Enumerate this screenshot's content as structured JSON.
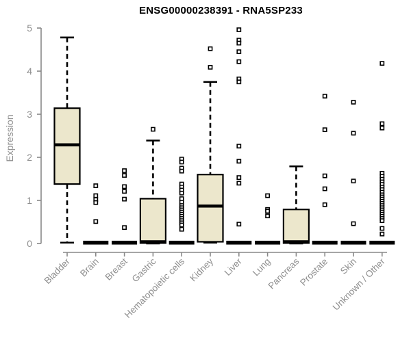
{
  "chart_data": {
    "type": "boxplot",
    "title": "ENSG00000238391 - RNA5SP233",
    "ylabel": "Expression",
    "xlabel": "",
    "ylim": [
      0,
      5
    ],
    "yticks": [
      0,
      1,
      2,
      3,
      4,
      5
    ],
    "grid": false,
    "legend": false,
    "marker": "open-square",
    "colors": {
      "box_fill": "#ece7cc",
      "box_stroke": "#000000",
      "axis": "#888888",
      "tick_label": "#8e8e8e",
      "outlier_fill": "#ffffff"
    },
    "categories": [
      "Bladder",
      "Brain",
      "Breast",
      "Gastric",
      "Hematopoietic cells",
      "Kidney",
      "Liver",
      "Lung",
      "Pancreas",
      "Prostate",
      "Skin",
      "Unknown / Other"
    ],
    "series": [
      {
        "name": "Bladder",
        "low": 0.02,
        "q1": 1.38,
        "median": 2.29,
        "q3": 3.14,
        "high": 4.78,
        "outliers": []
      },
      {
        "name": "Brain",
        "low": 0,
        "q1": 0,
        "median": 0.02,
        "q3": 0.03,
        "high": 0.03,
        "outliers": [
          1.34,
          1.11,
          1.02,
          0.95,
          0.51
        ]
      },
      {
        "name": "Breast",
        "low": 0,
        "q1": 0,
        "median": 0.02,
        "q3": 0.03,
        "high": 0.03,
        "outliers": [
          1.69,
          1.58,
          1.32,
          1.21,
          1.03,
          0.37
        ]
      },
      {
        "name": "Gastric",
        "low": 0,
        "q1": 0.01,
        "median": 0.04,
        "q3": 1.04,
        "high": 2.39,
        "outliers": [
          2.65
        ]
      },
      {
        "name": "Hematopoietic cells",
        "low": 0,
        "q1": 0,
        "median": 0.02,
        "q3": 0.03,
        "high": 0.03,
        "outliers": [
          1.96,
          1.89,
          1.75,
          1.68,
          1.38,
          1.31,
          1.24,
          1.17,
          1.04,
          0.96,
          0.88,
          0.83,
          0.78,
          0.73,
          0.68,
          0.63,
          0.58,
          0.53,
          0.48,
          0.43,
          0.33
        ]
      },
      {
        "name": "Kidney",
        "low": 0.02,
        "q1": 0.04,
        "median": 0.87,
        "q3": 1.6,
        "high": 3.75,
        "outliers": [
          4.52,
          4.09
        ]
      },
      {
        "name": "Liver",
        "low": 0,
        "q1": 0,
        "median": 0.02,
        "q3": 0.03,
        "high": 0.03,
        "outliers": [
          4.96,
          4.72,
          4.65,
          4.45,
          4.22,
          3.82,
          3.75,
          2.26,
          1.91,
          1.53,
          1.4,
          0.45
        ]
      },
      {
        "name": "Lung",
        "low": 0,
        "q1": 0,
        "median": 0.02,
        "q3": 0.03,
        "high": 0.03,
        "outliers": [
          1.11,
          0.79,
          0.75,
          0.64
        ]
      },
      {
        "name": "Pancreas",
        "low": 0,
        "q1": 0.01,
        "median": 0.04,
        "q3": 0.79,
        "high": 1.79,
        "outliers": []
      },
      {
        "name": "Prostate",
        "low": 0,
        "q1": 0,
        "median": 0.02,
        "q3": 0.03,
        "high": 0.03,
        "outliers": [
          3.42,
          2.64,
          1.57,
          1.27,
          0.9
        ]
      },
      {
        "name": "Skin",
        "low": 0,
        "q1": 0,
        "median": 0.02,
        "q3": 0.03,
        "high": 0.03,
        "outliers": [
          3.28,
          2.56,
          1.45,
          0.46
        ]
      },
      {
        "name": "Unknown / Other",
        "low": 0,
        "q1": 0,
        "median": 0.02,
        "q3": 0.03,
        "high": 0.03,
        "outliers": [
          4.18,
          2.78,
          2.68,
          1.63,
          1.56,
          1.49,
          1.43,
          1.37,
          1.31,
          1.25,
          1.19,
          1.13,
          1.08,
          1.03,
          0.98,
          0.93,
          0.88,
          0.83,
          0.78,
          0.73,
          0.68,
          0.63,
          0.58,
          0.53,
          0.35,
          0.22
        ]
      }
    ]
  }
}
